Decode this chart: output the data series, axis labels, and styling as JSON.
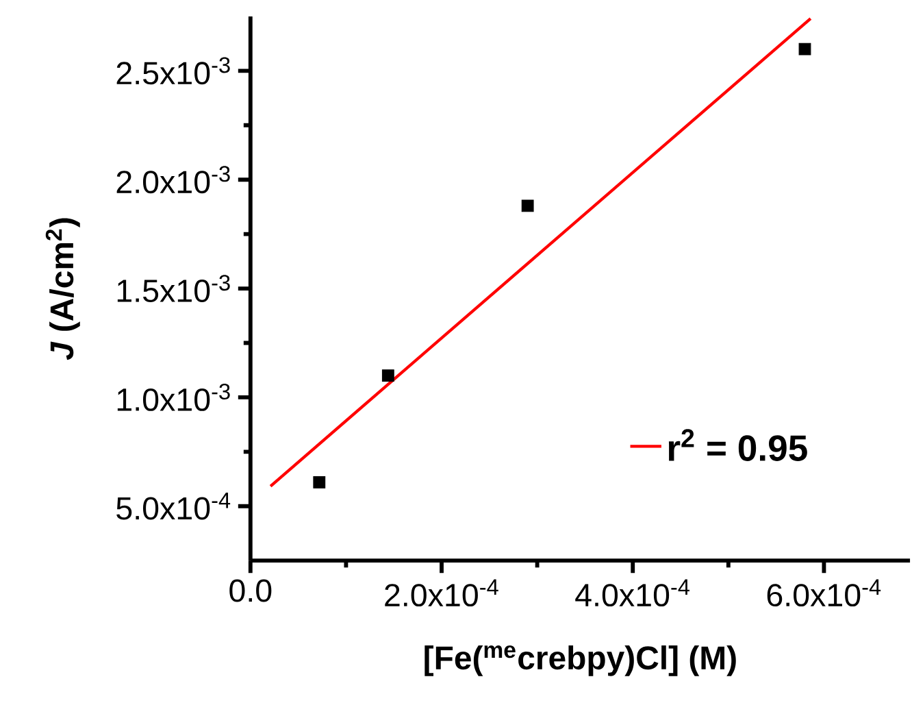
{
  "chart_data": {
    "type": "scatter",
    "xlabel": "[Fe($^{me}$crebpy)Cl] (M)",
    "ylabel": "*J* (A/cm$^{2}$)",
    "xlim": [
      0,
      0.00069
    ],
    "ylim": [
      0.00025,
      0.00275
    ],
    "xticks": [
      {
        "value": 0,
        "label": "0.0"
      },
      {
        "value": 0.0001,
        "label": null
      },
      {
        "value": 0.0002,
        "label": "2.0x10$^{-4}$"
      },
      {
        "value": 0.0003,
        "label": null
      },
      {
        "value": 0.0004,
        "label": "4.0x10$^{-4}$"
      },
      {
        "value": 0.0005,
        "label": null
      },
      {
        "value": 0.0006,
        "label": "6.0x10$^{-4}$"
      }
    ],
    "yticks": [
      {
        "value": 0.0005,
        "label": "5.0x10$^{-4}$"
      },
      {
        "value": 0.00075,
        "label": null
      },
      {
        "value": 0.001,
        "label": "1.0x10$^{-3}$"
      },
      {
        "value": 0.00125,
        "label": null
      },
      {
        "value": 0.0015,
        "label": "1.5x10$^{-3}$"
      },
      {
        "value": 0.00175,
        "label": null
      },
      {
        "value": 0.002,
        "label": "2.0x10$^{-3}$"
      },
      {
        "value": 0.00225,
        "label": null
      },
      {
        "value": 0.0025,
        "label": "2.5x10$^{-3}$"
      }
    ],
    "legend": "bottom right",
    "series": [
      {
        "color": "#000000",
        "marker": "square",
        "x": [
          7.2e-05,
          0.000144,
          0.00029,
          0.00058
        ],
        "values": [
          0.00061,
          0.0011,
          0.00188,
          0.0026
        ]
      },
      {
        "type": "line",
        "name": "r$^{2}$ = 0.95",
        "color": "#ff0000",
        "marker": "none",
        "line_style": "solid",
        "x": [
          2.1e-05,
          0.000586
        ],
        "values": [
          0.000592,
          0.00274
        ]
      }
    ]
  }
}
